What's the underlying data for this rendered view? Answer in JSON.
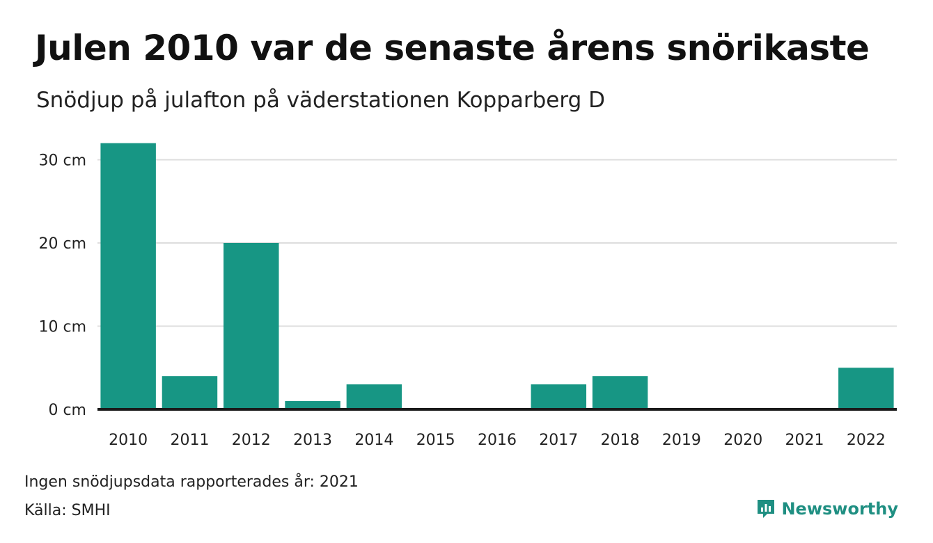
{
  "title": "Julen 2010 var de senaste årens snörikaste",
  "subtitle": "Snödjup på julafton på väderstationen Kopparberg D",
  "note": "Ingen snödjupsdata rapporterades år: 2021",
  "source": "Källa: SMHI",
  "brand": {
    "name": "Newsworthy",
    "logo_icon": "newsworthy-logo-icon"
  },
  "colors": {
    "bar": "#179684",
    "axis": "#1a1a1a",
    "grid": "#dddddd",
    "brand": "#1f8f82"
  },
  "chart_data": {
    "type": "bar",
    "categories": [
      "2010",
      "2011",
      "2012",
      "2013",
      "2014",
      "2015",
      "2016",
      "2017",
      "2018",
      "2019",
      "2020",
      "2021",
      "2022"
    ],
    "values": [
      32,
      4,
      20,
      1,
      3,
      0,
      0,
      3,
      4,
      0,
      0,
      0,
      5
    ],
    "ylim": [
      0,
      32
    ],
    "yticks": [
      0,
      10,
      20,
      30
    ],
    "ytick_labels": [
      "0 cm",
      "10 cm",
      "20 cm",
      "30 cm"
    ],
    "xlabel": "",
    "ylabel": "",
    "grid": true,
    "legend": "none"
  }
}
